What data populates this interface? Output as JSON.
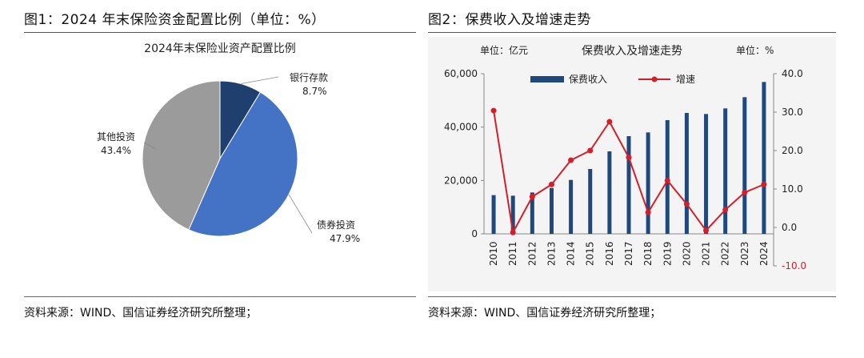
{
  "left": {
    "figure_title": "图1：2024 年末保险资金配置比例（单位：%）",
    "source": "资料来源：WIND、国信证券经济研究所整理；"
  },
  "right": {
    "figure_title": "图2：保费收入及增速走势",
    "source": "资料来源：WIND、国信证券经济研究所整理；"
  },
  "colors": {
    "bank": "#1f3f6e",
    "bond": "#4472c4",
    "other": "#9b9b9b",
    "bar": "#1f497d",
    "line": "#d41e2a",
    "right_axis_neg": "#d41e2a"
  },
  "chart_data": [
    {
      "type": "pie",
      "title": "2024年末保险业资产配置比例",
      "slices": [
        {
          "name": "银行存款",
          "label": "8.7%",
          "value": 8.7
        },
        {
          "name": "债券投资",
          "label": "47.9%",
          "value": 47.9
        },
        {
          "name": "其他投资",
          "label": "43.4%",
          "value": 43.4
        }
      ]
    },
    {
      "type": "bar",
      "title": "保费收入及增速走势",
      "unit_left": "单位：亿元",
      "unit_right": "单位：%",
      "categories": [
        "2010",
        "2011",
        "2012",
        "2013",
        "2014",
        "2015",
        "2016",
        "2017",
        "2018",
        "2019",
        "2020",
        "2021",
        "2022",
        "2023",
        "2024"
      ],
      "series": [
        {
          "name": "保费收入",
          "type": "bar",
          "axis": "left",
          "values": [
            14500,
            14300,
            15500,
            17200,
            20200,
            24300,
            30900,
            36600,
            38000,
            42600,
            45300,
            44900,
            47000,
            51200,
            56900
          ]
        },
        {
          "name": "增速",
          "type": "line",
          "axis": "right",
          "values": [
            30.4,
            -1.3,
            8.0,
            11.2,
            17.5,
            20.0,
            27.5,
            18.2,
            3.9,
            12.2,
            6.1,
            -0.8,
            4.6,
            9.1,
            11.2
          ]
        }
      ],
      "y_left": {
        "min": 0,
        "max": 60000,
        "ticks": [
          "0",
          "20,000",
          "40,000",
          "60,000"
        ],
        "tick_values": [
          0,
          20000,
          40000,
          60000
        ]
      },
      "y_right": {
        "min": -10,
        "max": 40,
        "ticks": [
          "-10.0",
          "0.0",
          "10.0",
          "20.0",
          "30.0",
          "40.0"
        ],
        "tick_values": [
          -10,
          0,
          10,
          20,
          30,
          40
        ]
      },
      "legend_position": "top"
    }
  ]
}
